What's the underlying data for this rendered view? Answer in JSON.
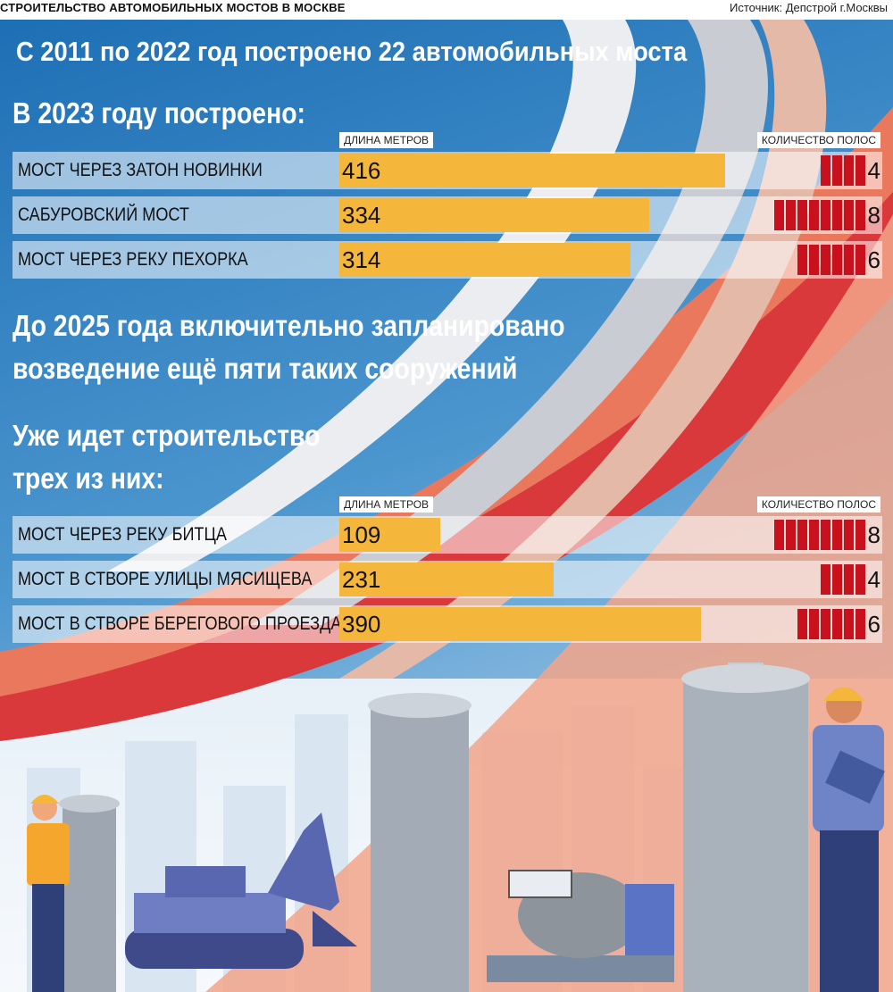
{
  "header": {
    "title": "СТРОИТЕЛЬСТВО АВТОМОБИЛЬНЫХ МОСТОВ В МОСКВЕ",
    "source": "Источник: Депстрой г.Москвы"
  },
  "headline": "С 2011 по 2022 год построено 22 автомобильных моста",
  "section_built": {
    "title": "В 2023 году построено:",
    "col_length": "ДЛИНА МЕТРОВ",
    "col_lanes": "КОЛИЧЕСТВО ПОЛОС"
  },
  "planned_line1": "До 2025 года включительно запланировано",
  "planned_line2": "возведение ещё пяти таких сооружений",
  "section_construction": {
    "title_line1": "Уже идет строительство",
    "title_line2": "трех из них:",
    "col_length": "ДЛИНА МЕТРОВ",
    "col_lanes": "КОЛИЧЕСТВО ПОЛОС"
  },
  "colors": {
    "bar": "#f5b73b",
    "lane": "#c8111c",
    "sky": "#2f7fc0"
  },
  "chart_data": [
    {
      "type": "bar",
      "title": "В 2023 году построено:",
      "categories": [
        "МОСТ ЧЕРЕЗ ЗАТОН НОВИНКИ",
        "САБУРОВСКИЙ МОСТ",
        "МОСТ ЧЕРЕЗ РЕКУ ПЕХОРКА"
      ],
      "series": [
        {
          "name": "ДЛИНА МЕТРОВ",
          "values": [
            416,
            334,
            314
          ]
        },
        {
          "name": "КОЛИЧЕСТВО ПОЛОС",
          "values": [
            4,
            8,
            6
          ]
        }
      ]
    },
    {
      "type": "bar",
      "title": "Уже идет строительство трех из них:",
      "categories": [
        "МОСТ ЧЕРЕЗ РЕКУ БИТЦА",
        "МОСТ В СТВОРЕ УЛИЦЫ МЯСИЩЕВА",
        "МОСТ В СТВОРЕ БЕРЕГОВОГО ПРОЕЗДА"
      ],
      "series": [
        {
          "name": "ДЛИНА МЕТРОВ",
          "values": [
            109,
            231,
            390
          ]
        },
        {
          "name": "КОЛИЧЕСТВО ПОЛОС",
          "values": [
            8,
            4,
            6
          ]
        }
      ]
    }
  ]
}
